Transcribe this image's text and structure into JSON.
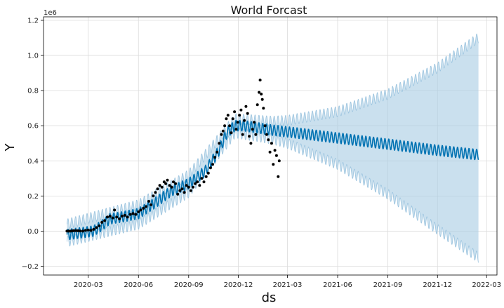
{
  "chart_data": {
    "type": "line",
    "title": "World Forcast",
    "xlabel": "ds",
    "ylabel": "Y",
    "y_scale_note": "1e6",
    "grid": true,
    "x_ticks": [
      "2020-03",
      "2020-06",
      "2020-09",
      "2020-12",
      "2021-03",
      "2021-06",
      "2021-09",
      "2021-12",
      "2022-03"
    ],
    "y_ticks": [
      -0.2,
      0.0,
      0.2,
      0.4,
      0.6,
      0.8,
      1.0,
      1.2
    ],
    "xlim": [
      "2019-12-10",
      "2022-03-20"
    ],
    "ylim": [
      -0.25,
      1.22
    ],
    "series": [
      {
        "name": "yhat",
        "color": "#0072B2",
        "weekly_amplitude": 0.03,
        "points": [
          [
            "2020-01-22",
            -0.02
          ],
          [
            "2020-02-15",
            -0.01
          ],
          [
            "2020-03-10",
            0.0
          ],
          [
            "2020-03-25",
            0.03
          ],
          [
            "2020-04-10",
            0.07
          ],
          [
            "2020-05-01",
            0.08
          ],
          [
            "2020-06-01",
            0.1
          ],
          [
            "2020-07-01",
            0.16
          ],
          [
            "2020-08-01",
            0.23
          ],
          [
            "2020-09-01",
            0.27
          ],
          [
            "2020-10-01",
            0.34
          ],
          [
            "2020-10-25",
            0.45
          ],
          [
            "2020-11-10",
            0.56
          ],
          [
            "2020-11-25",
            0.6
          ],
          [
            "2020-12-10",
            0.6
          ],
          [
            "2021-01-01",
            0.59
          ],
          [
            "2021-02-01",
            0.575
          ],
          [
            "2021-03-01",
            0.565
          ],
          [
            "2021-06-01",
            0.53
          ],
          [
            "2021-09-01",
            0.495
          ],
          [
            "2021-12-01",
            0.46
          ],
          [
            "2022-02-14",
            0.435
          ]
        ]
      },
      {
        "name": "uncertainty-upper",
        "color": "#a6cbe3",
        "points": [
          [
            "2020-01-22",
            0.04
          ],
          [
            "2020-06-01",
            0.15
          ],
          [
            "2020-09-01",
            0.32
          ],
          [
            "2020-11-25",
            0.64
          ],
          [
            "2021-02-01",
            0.625
          ],
          [
            "2021-03-01",
            0.63
          ],
          [
            "2021-06-01",
            0.68
          ],
          [
            "2021-09-01",
            0.78
          ],
          [
            "2021-12-01",
            0.93
          ],
          [
            "2022-02-14",
            1.1
          ]
        ]
      },
      {
        "name": "uncertainty-lower",
        "color": "#a6cbe3",
        "points": [
          [
            "2020-01-22",
            -0.06
          ],
          [
            "2020-06-01",
            0.04
          ],
          [
            "2020-09-01",
            0.22
          ],
          [
            "2020-11-25",
            0.56
          ],
          [
            "2021-02-01",
            0.525
          ],
          [
            "2021-03-01",
            0.5
          ],
          [
            "2021-06-01",
            0.38
          ],
          [
            "2021-09-01",
            0.21
          ],
          [
            "2021-12-01",
            0.01
          ],
          [
            "2022-02-14",
            -0.15
          ]
        ]
      },
      {
        "name": "observed",
        "color": "#000000",
        "type": "scatter",
        "points": [
          [
            "2020-01-22",
            0.0
          ],
          [
            "2020-01-25",
            0.0
          ],
          [
            "2020-01-28",
            0.0
          ],
          [
            "2020-01-31",
            0.001
          ],
          [
            "2020-02-03",
            0.002
          ],
          [
            "2020-02-07",
            0.003
          ],
          [
            "2020-02-11",
            0.002
          ],
          [
            "2020-02-15",
            0.001
          ],
          [
            "2020-02-20",
            0.0
          ],
          [
            "2020-02-25",
            0.004
          ],
          [
            "2020-03-01",
            0.006
          ],
          [
            "2020-03-06",
            0.004
          ],
          [
            "2020-03-11",
            0.01
          ],
          [
            "2020-03-16",
            0.02
          ],
          [
            "2020-03-21",
            0.03
          ],
          [
            "2020-03-26",
            0.05
          ],
          [
            "2020-03-31",
            0.06
          ],
          [
            "2020-04-05",
            0.08
          ],
          [
            "2020-04-10",
            0.085
          ],
          [
            "2020-04-15",
            0.075
          ],
          [
            "2020-04-18",
            0.12
          ],
          [
            "2020-04-22",
            0.08
          ],
          [
            "2020-04-27",
            0.07
          ],
          [
            "2020-05-02",
            0.085
          ],
          [
            "2020-05-07",
            0.09
          ],
          [
            "2020-05-12",
            0.08
          ],
          [
            "2020-05-17",
            0.095
          ],
          [
            "2020-05-22",
            0.1
          ],
          [
            "2020-05-27",
            0.095
          ],
          [
            "2020-06-01",
            0.11
          ],
          [
            "2020-06-05",
            0.12
          ],
          [
            "2020-06-10",
            0.13
          ],
          [
            "2020-06-15",
            0.14
          ],
          [
            "2020-06-20",
            0.17
          ],
          [
            "2020-06-24",
            0.15
          ],
          [
            "2020-06-28",
            0.2
          ],
          [
            "2020-07-02",
            0.22
          ],
          [
            "2020-07-06",
            0.24
          ],
          [
            "2020-07-10",
            0.26
          ],
          [
            "2020-07-14",
            0.25
          ],
          [
            "2020-07-18",
            0.28
          ],
          [
            "2020-07-21",
            0.27
          ],
          [
            "2020-07-24",
            0.29
          ],
          [
            "2020-07-28",
            0.26
          ],
          [
            "2020-08-01",
            0.25
          ],
          [
            "2020-08-04",
            0.28
          ],
          [
            "2020-08-08",
            0.27
          ],
          [
            "2020-08-12",
            0.21
          ],
          [
            "2020-08-16",
            0.23
          ],
          [
            "2020-08-20",
            0.24
          ],
          [
            "2020-08-24",
            0.22
          ],
          [
            "2020-08-28",
            0.26
          ],
          [
            "2020-09-01",
            0.25
          ],
          [
            "2020-09-05",
            0.23
          ],
          [
            "2020-09-09",
            0.25
          ],
          [
            "2020-09-13",
            0.27
          ],
          [
            "2020-09-17",
            0.28
          ],
          [
            "2020-09-21",
            0.26
          ],
          [
            "2020-09-25",
            0.3
          ],
          [
            "2020-09-29",
            0.28
          ],
          [
            "2020-10-03",
            0.31
          ],
          [
            "2020-10-07",
            0.33
          ],
          [
            "2020-10-11",
            0.36
          ],
          [
            "2020-10-15",
            0.38
          ],
          [
            "2020-10-19",
            0.42
          ],
          [
            "2020-10-23",
            0.45
          ],
          [
            "2020-10-27",
            0.5
          ],
          [
            "2020-10-31",
            0.55
          ],
          [
            "2020-11-03",
            0.57
          ],
          [
            "2020-11-06",
            0.6
          ],
          [
            "2020-11-09",
            0.64
          ],
          [
            "2020-11-12",
            0.66
          ],
          [
            "2020-11-15",
            0.6
          ],
          [
            "2020-11-18",
            0.56
          ],
          [
            "2020-11-21",
            0.64
          ],
          [
            "2020-11-24",
            0.68
          ],
          [
            "2020-11-27",
            0.58
          ],
          [
            "2020-11-30",
            0.62
          ],
          [
            "2020-12-03",
            0.66
          ],
          [
            "2020-12-06",
            0.69
          ],
          [
            "2020-12-09",
            0.55
          ],
          [
            "2020-12-12",
            0.63
          ],
          [
            "2020-12-15",
            0.71
          ],
          [
            "2020-12-18",
            0.67
          ],
          [
            "2020-12-21",
            0.54
          ],
          [
            "2020-12-24",
            0.5
          ],
          [
            "2020-12-27",
            0.58
          ],
          [
            "2020-12-30",
            0.62
          ],
          [
            "2021-01-02",
            0.55
          ],
          [
            "2021-01-05",
            0.72
          ],
          [
            "2021-01-08",
            0.79
          ],
          [
            "2021-01-10",
            0.86
          ],
          [
            "2021-01-12",
            0.78
          ],
          [
            "2021-01-14",
            0.75
          ],
          [
            "2021-01-16",
            0.7
          ],
          [
            "2021-01-19",
            0.6
          ],
          [
            "2021-01-22",
            0.55
          ],
          [
            "2021-01-25",
            0.52
          ],
          [
            "2021-01-28",
            0.45
          ],
          [
            "2021-01-31",
            0.5
          ],
          [
            "2021-02-03",
            0.38
          ],
          [
            "2021-02-06",
            0.46
          ],
          [
            "2021-02-09",
            0.43
          ],
          [
            "2021-02-12",
            0.31
          ],
          [
            "2021-02-14",
            0.4
          ]
        ]
      }
    ]
  }
}
